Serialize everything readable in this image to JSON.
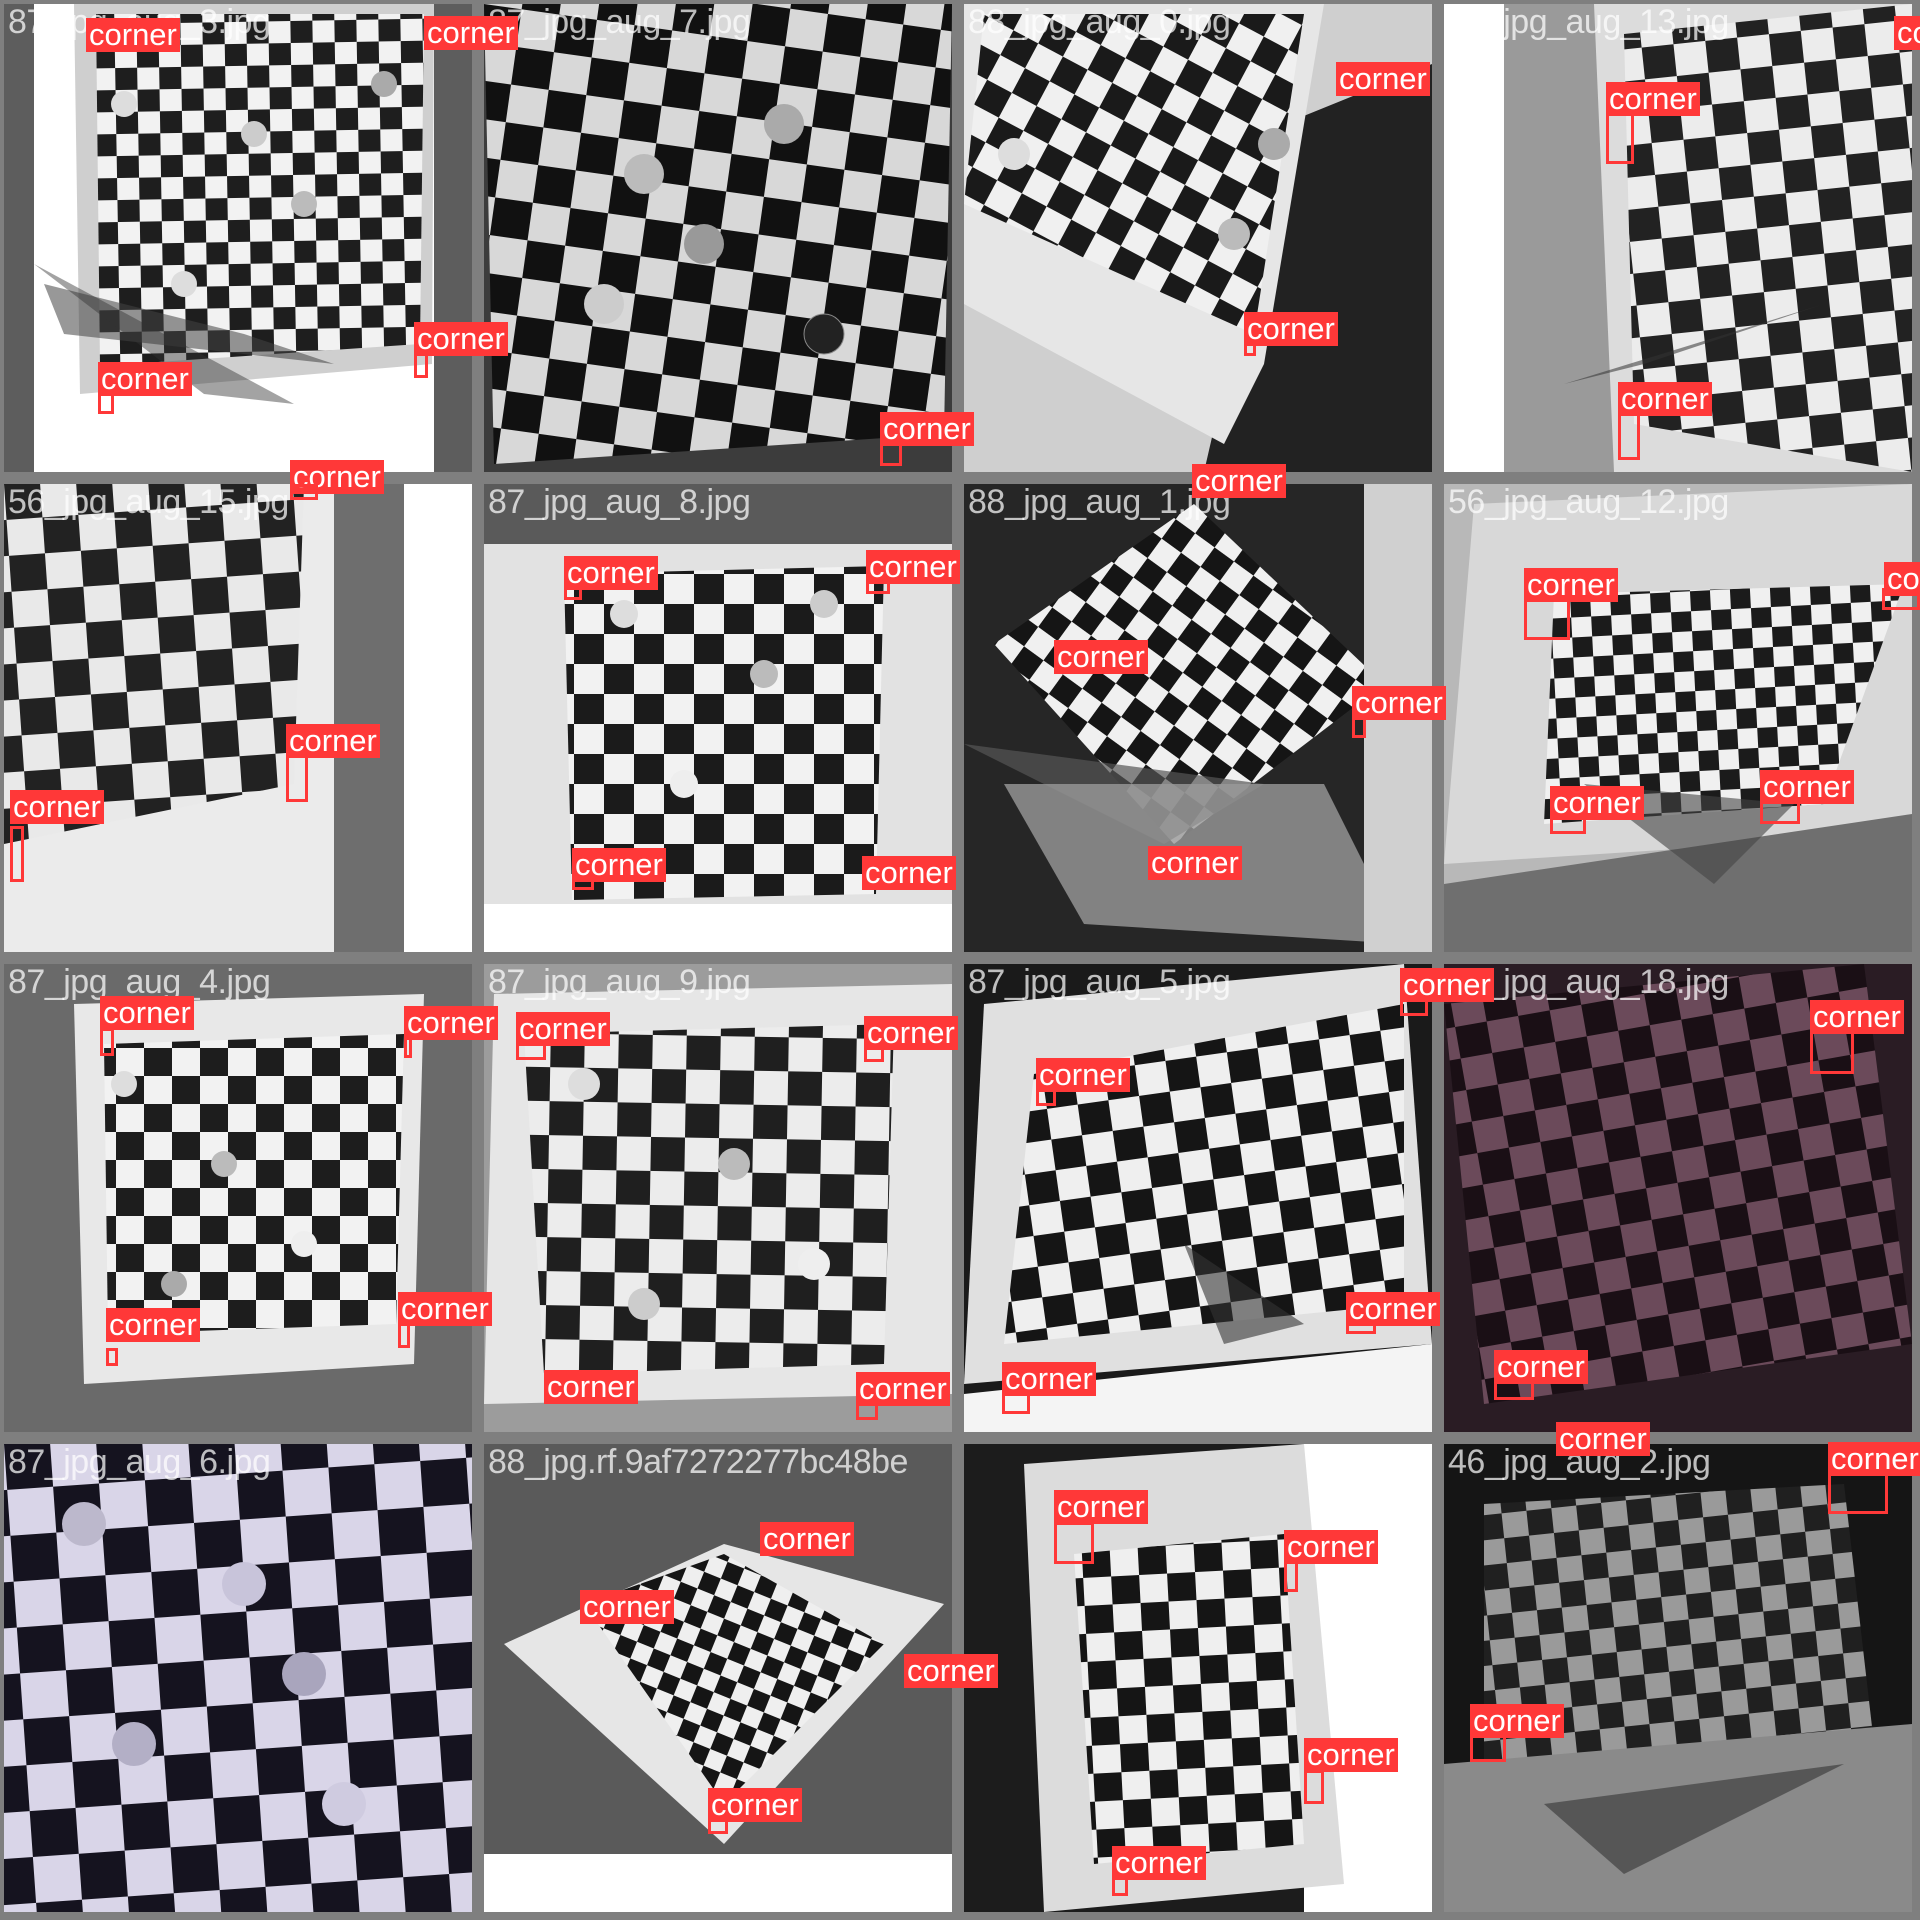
{
  "palette": {
    "label": "#ff3838",
    "label_text": "#ffffff",
    "frame": "#7f7f7f"
  },
  "tiles": [
    {
      "file": "87_jpg_aug_3.jpg",
      "tint": "gray",
      "detections": [
        {
          "class": "corner"
        },
        {
          "class": "corner"
        },
        {
          "class": "corner"
        },
        {
          "class": "corner"
        }
      ]
    },
    {
      "file": "87_jpg_aug_7.jpg",
      "tint": "dark",
      "detections": [
        {
          "class": "corner"
        }
      ]
    },
    {
      "file": "88_jpg_aug_0.jpg",
      "tint": "light",
      "detections": [
        {
          "class": "corner"
        },
        {
          "class": "corner"
        },
        {
          "class": "corner"
        }
      ]
    },
    {
      "file": "56_jpg_aug_13.jpg",
      "tint": "gray",
      "detections": [
        {
          "class": "corner"
        },
        {
          "class": "corner"
        },
        {
          "class": "corner"
        }
      ]
    },
    {
      "file": "56_jpg_aug_15.jpg",
      "tint": "gray",
      "detections": [
        {
          "class": "corner"
        },
        {
          "class": "corner"
        },
        {
          "class": "corner"
        }
      ]
    },
    {
      "file": "87_jpg_aug_8.jpg",
      "tint": "light",
      "detections": [
        {
          "class": "corner"
        },
        {
          "class": "corner"
        },
        {
          "class": "corner"
        },
        {
          "class": "corner"
        }
      ]
    },
    {
      "file": "88_jpg_aug_1.jpg",
      "tint": "dark",
      "detections": [
        {
          "class": "corner"
        },
        {
          "class": "corner"
        },
        {
          "class": "corner"
        },
        {
          "class": "corner"
        }
      ]
    },
    {
      "file": "56_jpg_aug_12.jpg",
      "tint": "gray",
      "detections": [
        {
          "class": "corner"
        },
        {
          "class": "corner"
        },
        {
          "class": "corner"
        },
        {
          "class": "corner"
        }
      ]
    },
    {
      "file": "87_jpg_aug_4.jpg",
      "tint": "gray",
      "detections": [
        {
          "class": "corner"
        },
        {
          "class": "corner"
        },
        {
          "class": "corner"
        },
        {
          "class": "corner"
        }
      ]
    },
    {
      "file": "87_jpg_aug_9.jpg",
      "tint": "light",
      "detections": [
        {
          "class": "corner"
        },
        {
          "class": "corner"
        },
        {
          "class": "corner"
        },
        {
          "class": "corner"
        }
      ]
    },
    {
      "file": "87_jpg_aug_5.jpg",
      "tint": "dark",
      "detections": [
        {
          "class": "corner"
        },
        {
          "class": "corner"
        },
        {
          "class": "corner"
        },
        {
          "class": "corner"
        }
      ]
    },
    {
      "file": "46_jpg_aug_18.jpg",
      "tint": "purple",
      "detections": [
        {
          "class": "corner"
        },
        {
          "class": "corner"
        }
      ]
    },
    {
      "file": "87_jpg_aug_6.jpg",
      "tint": "lavender",
      "detections": []
    },
    {
      "file": "88_jpg.rf.9af7272277bc48be",
      "tint": "dark",
      "detections": [
        {
          "class": "corner"
        },
        {
          "class": "corner"
        },
        {
          "class": "corner"
        },
        {
          "class": "corner"
        }
      ]
    },
    {
      "file": "",
      "tint": "light",
      "detections": [
        {
          "class": "corner"
        },
        {
          "class": "corner"
        },
        {
          "class": "corner"
        },
        {
          "class": "corner"
        }
      ]
    },
    {
      "file": "46_jpg_aug_2.jpg",
      "tint": "dark",
      "detections": [
        {
          "class": "corner"
        },
        {
          "class": "corner"
        },
        {
          "class": "corner"
        }
      ]
    }
  ]
}
